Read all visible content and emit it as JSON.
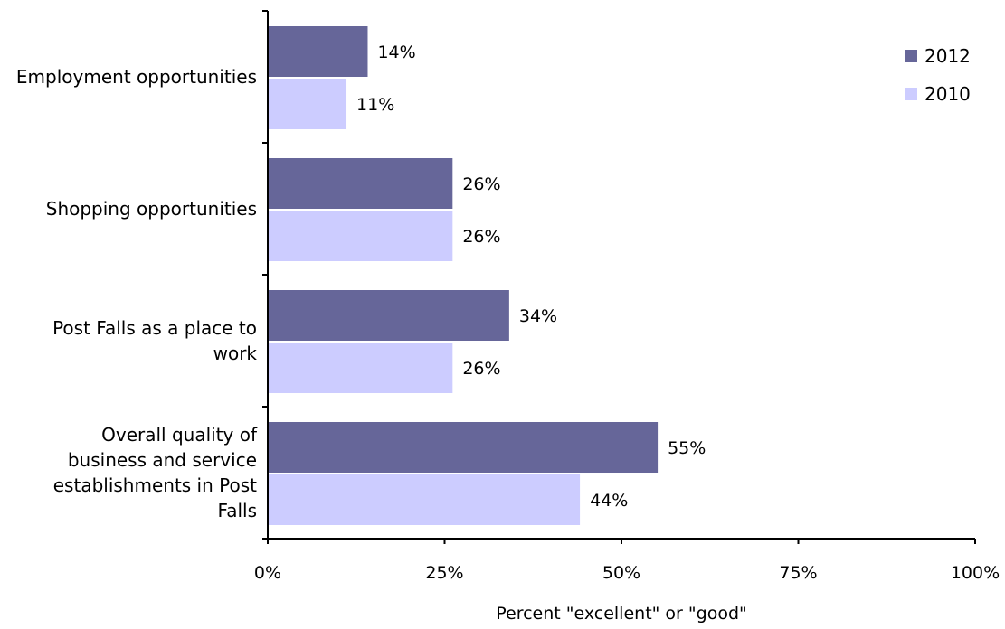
{
  "chart_data": {
    "type": "bar",
    "orientation": "horizontal",
    "categories": [
      "Employment opportunities",
      "Shopping opportunities",
      "Post Falls as a place to work",
      "Overall quality of business and service establishments in Post Falls"
    ],
    "series": [
      {
        "name": "2012",
        "values": [
          14,
          26,
          34,
          55
        ],
        "color": "#666699"
      },
      {
        "name": "2010",
        "values": [
          11,
          26,
          26,
          44
        ],
        "color": "#ccccff"
      }
    ],
    "data_labels": [
      [
        "14%",
        "26%",
        "34%",
        "55%"
      ],
      [
        "11%",
        "26%",
        "26%",
        "44%"
      ]
    ],
    "xlabel": "Percent \"excellent\" or \"good\"",
    "xlim": [
      0,
      100
    ],
    "xticks": [
      0,
      25,
      50,
      75,
      100
    ],
    "xtick_labels": [
      "0%",
      "25%",
      "50%",
      "75%",
      "100%"
    ],
    "legend_position": "top-right",
    "grid": false
  },
  "category_label_lines": [
    [
      "Employment opportunities"
    ],
    [
      "Shopping opportunities"
    ],
    [
      "Post Falls as a place to",
      "work"
    ],
    [
      "Overall quality of",
      "business and service",
      "establishments in Post",
      "Falls"
    ]
  ]
}
